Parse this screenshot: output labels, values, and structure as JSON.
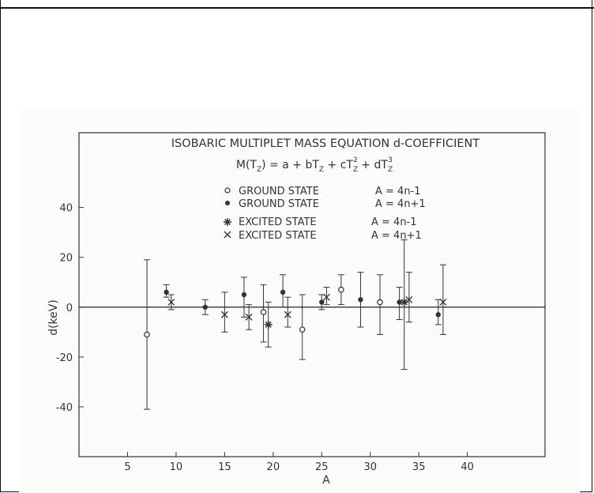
{
  "chart_data": {
    "type": "scatter",
    "title": "ISOBARIC MULTIPLET MASS EQUATION d-COEFFICIENT",
    "equation": {
      "lhs": "M(T",
      "lhs_sub": "Z",
      "lhs_close": ") = a + bT",
      "b_sub": "Z",
      "c_term": " + cT",
      "c_sub": "Z",
      "c_sup": "2",
      "d_term": " + dT",
      "d_sub": "Z",
      "d_sup": "3"
    },
    "xlabel": "A",
    "ylabel": "d(keV)",
    "xlim": [
      0,
      48
    ],
    "ylim": [
      -60,
      70
    ],
    "xticks": [
      5,
      10,
      15,
      20,
      25,
      30,
      35,
      40
    ],
    "xtick_labels": [
      "5",
      "10",
      "15",
      "20",
      "25",
      "30",
      "35",
      "40"
    ],
    "yticks": [
      -40,
      -20,
      0,
      20,
      40
    ],
    "ytick_labels": [
      "-40",
      "-20",
      "0",
      "20",
      "40"
    ],
    "legend": [
      {
        "marker": "open-circle",
        "label": "GROUND STATE",
        "formula": "A = 4n-1"
      },
      {
        "marker": "filled-circle",
        "label": "GROUND STATE",
        "formula": "A = 4n+1"
      },
      {
        "marker": "asterisk",
        "label": "EXCITED STATE",
        "formula": "A = 4n-1"
      },
      {
        "marker": "cross",
        "label": "EXCITED STATE",
        "formula": "A = 4n+1"
      }
    ],
    "series": [
      {
        "marker": "open-circle",
        "points": [
          {
            "x": 7,
            "y": -11,
            "err_lo": -41,
            "err_hi": 19
          },
          {
            "x": 19,
            "y": -2,
            "err_lo": -14,
            "err_hi": 9
          },
          {
            "x": 23,
            "y": -9,
            "err_lo": -21,
            "err_hi": 5
          },
          {
            "x": 27,
            "y": 7,
            "err_lo": 1,
            "err_hi": 13
          },
          {
            "x": 31,
            "y": 2,
            "err_lo": -11,
            "err_hi": 13
          }
        ]
      },
      {
        "marker": "filled-circle",
        "points": [
          {
            "x": 9,
            "y": 6,
            "err_lo": 4,
            "err_hi": 9
          },
          {
            "x": 13,
            "y": 0,
            "err_lo": -3,
            "err_hi": 3
          },
          {
            "x": 17,
            "y": 5,
            "err_lo": -4,
            "err_hi": 12
          },
          {
            "x": 21,
            "y": 6,
            "err_lo": 0,
            "err_hi": 13
          },
          {
            "x": 25,
            "y": 2,
            "err_lo": -1,
            "err_hi": 5
          },
          {
            "x": 29,
            "y": 3,
            "err_lo": -8,
            "err_hi": 14
          },
          {
            "x": 33,
            "y": 2,
            "err_lo": -5,
            "err_hi": 8
          },
          {
            "x": 37,
            "y": -3,
            "err_lo": -7,
            "err_hi": 3
          }
        ]
      },
      {
        "marker": "asterisk",
        "points": [
          {
            "x": 19.5,
            "y": -7,
            "err_lo": -16,
            "err_hi": 2
          },
          {
            "x": 33.5,
            "y": 2,
            "err_lo": -25,
            "err_hi": 27
          }
        ]
      },
      {
        "marker": "cross",
        "points": [
          {
            "x": 9.5,
            "y": 2,
            "err_lo": -1,
            "err_hi": 5
          },
          {
            "x": 15,
            "y": -3,
            "err_lo": -10,
            "err_hi": 6
          },
          {
            "x": 17.5,
            "y": -4,
            "err_lo": -9,
            "err_hi": 1
          },
          {
            "x": 21.5,
            "y": -3,
            "err_lo": -8,
            "err_hi": 4
          },
          {
            "x": 25.5,
            "y": 4,
            "err_lo": 1,
            "err_hi": 8
          },
          {
            "x": 34,
            "y": 3,
            "err_lo": -6,
            "err_hi": 14
          },
          {
            "x": 37.5,
            "y": 2,
            "err_lo": -11,
            "err_hi": 17
          }
        ]
      }
    ],
    "grid": false,
    "zero_line": true,
    "legend_position": "top"
  }
}
